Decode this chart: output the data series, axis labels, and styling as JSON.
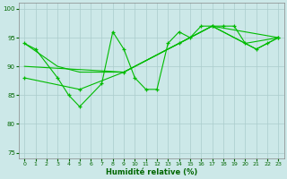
{
  "bg_color": "#cce8e8",
  "grid_color": "#aacccc",
  "line_color": "#00bb00",
  "xlabel": "Humidité relative (%)",
  "xlim": [
    -0.5,
    23.5
  ],
  "ylim": [
    74,
    101
  ],
  "yticks": [
    75,
    80,
    85,
    90,
    95,
    100
  ],
  "xticks": [
    0,
    1,
    2,
    3,
    4,
    5,
    6,
    7,
    8,
    9,
    10,
    11,
    12,
    13,
    14,
    15,
    16,
    17,
    18,
    19,
    20,
    21,
    22,
    23
  ],
  "line1_x": [
    0,
    1,
    3,
    4,
    5,
    7,
    8,
    9,
    10,
    11,
    12,
    13,
    14,
    15,
    16,
    17,
    18,
    19,
    20,
    21,
    22,
    23
  ],
  "line1_y": [
    94,
    93,
    88,
    85,
    83,
    87,
    96,
    93,
    88,
    86,
    86,
    94,
    96,
    95,
    97,
    97,
    97,
    97,
    94,
    93,
    94,
    95
  ],
  "line2_x": [
    0,
    3,
    5,
    7,
    9,
    10,
    11,
    12,
    13,
    14,
    15,
    16,
    17,
    20,
    21,
    22,
    23
  ],
  "line2_y": [
    94,
    90,
    89,
    89,
    89,
    90,
    91,
    92,
    93,
    94,
    95,
    96,
    97,
    94,
    93,
    94,
    95
  ],
  "line3_x": [
    0,
    5,
    9,
    14,
    17,
    23
  ],
  "line3_y": [
    88,
    86,
    89,
    94,
    97,
    95
  ],
  "line4_x": [
    0,
    9,
    14,
    17,
    20,
    23
  ],
  "line4_y": [
    90,
    89,
    94,
    97,
    94,
    95
  ]
}
